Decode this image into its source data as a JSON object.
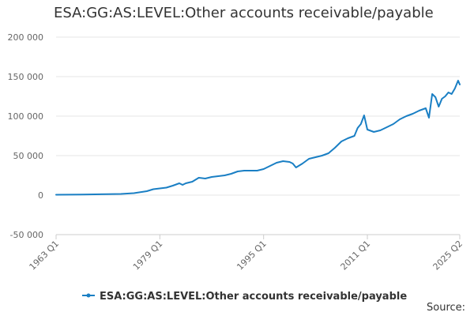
{
  "title": "ESA:GG:AS:LEVEL:Other accounts receivable/payable",
  "source_label": "Source:",
  "colors": {
    "series": "#1a7fc4",
    "grid": "#e6e6e6",
    "axis": "#cccccc",
    "text": "#333333",
    "tick_text": "#666666"
  },
  "chart_data": {
    "type": "line",
    "title": "ESA:GG:AS:LEVEL:Other accounts receivable/payable",
    "xlabel": "",
    "ylabel": "",
    "ylim": [
      -50000,
      200000
    ],
    "y_ticks": [
      -50000,
      0,
      50000,
      100000,
      150000,
      200000
    ],
    "y_tick_labels": [
      "-50 000",
      "0",
      "50 000",
      "100 000",
      "150 000",
      "200 000"
    ],
    "x_range": [
      "1963 Q1",
      "2025 Q2"
    ],
    "x_ticks": [
      "1963 Q1",
      "1979 Q1",
      "1995 Q1",
      "2011 Q1",
      "2025 Q2"
    ],
    "grid": true,
    "legend_position": "bottom",
    "series": [
      {
        "name": "ESA:GG:AS:LEVEL:Other accounts receivable/payable",
        "points": [
          [
            "1963 Q1",
            500
          ],
          [
            "1965 Q1",
            600
          ],
          [
            "1967 Q1",
            800
          ],
          [
            "1969 Q1",
            1000
          ],
          [
            "1971 Q1",
            1200
          ],
          [
            "1973 Q1",
            1500
          ],
          [
            "1975 Q1",
            2500
          ],
          [
            "1977 Q1",
            5000
          ],
          [
            "1978 Q1",
            7500
          ],
          [
            "1979 Q1",
            8500
          ],
          [
            "1980 Q1",
            9500
          ],
          [
            "1981 Q1",
            12000
          ],
          [
            "1982 Q1",
            15000
          ],
          [
            "1982 Q3",
            13000
          ],
          [
            "1983 Q1",
            15000
          ],
          [
            "1984 Q1",
            17000
          ],
          [
            "1985 Q1",
            22000
          ],
          [
            "1986 Q1",
            21000
          ],
          [
            "1987 Q1",
            23000
          ],
          [
            "1988 Q1",
            24000
          ],
          [
            "1989 Q1",
            25000
          ],
          [
            "1990 Q1",
            27000
          ],
          [
            "1991 Q1",
            30000
          ],
          [
            "1992 Q1",
            31000
          ],
          [
            "1993 Q1",
            31000
          ],
          [
            "1994 Q1",
            31000
          ],
          [
            "1995 Q1",
            33000
          ],
          [
            "1996 Q1",
            37000
          ],
          [
            "1997 Q1",
            41000
          ],
          [
            "1998 Q1",
            43000
          ],
          [
            "1999 Q1",
            42000
          ],
          [
            "1999 Q3",
            40000
          ],
          [
            "2000 Q1",
            35000
          ],
          [
            "2001 Q1",
            40000
          ],
          [
            "2002 Q1",
            46000
          ],
          [
            "2003 Q1",
            48000
          ],
          [
            "2004 Q1",
            50000
          ],
          [
            "2005 Q1",
            53000
          ],
          [
            "2006 Q1",
            60000
          ],
          [
            "2007 Q1",
            68000
          ],
          [
            "2008 Q1",
            72000
          ],
          [
            "2009 Q1",
            75000
          ],
          [
            "2009 Q3",
            85000
          ],
          [
            "2010 Q1",
            90000
          ],
          [
            "2010 Q3",
            101000
          ],
          [
            "2011 Q1",
            83000
          ],
          [
            "2012 Q1",
            80000
          ],
          [
            "2013 Q1",
            82000
          ],
          [
            "2014 Q1",
            86000
          ],
          [
            "2015 Q1",
            90000
          ],
          [
            "2016 Q1",
            96000
          ],
          [
            "2017 Q1",
            100000
          ],
          [
            "2018 Q1",
            103000
          ],
          [
            "2019 Q1",
            107000
          ],
          [
            "2020 Q1",
            110000
          ],
          [
            "2020 Q3",
            98000
          ],
          [
            "2021 Q1",
            128000
          ],
          [
            "2021 Q3",
            124000
          ],
          [
            "2022 Q1",
            112000
          ],
          [
            "2022 Q3",
            122000
          ],
          [
            "2023 Q1",
            125000
          ],
          [
            "2023 Q3",
            130000
          ],
          [
            "2024 Q1",
            128000
          ],
          [
            "2024 Q3",
            135000
          ],
          [
            "2025 Q1",
            145000
          ],
          [
            "2025 Q2",
            140000
          ]
        ]
      }
    ]
  }
}
